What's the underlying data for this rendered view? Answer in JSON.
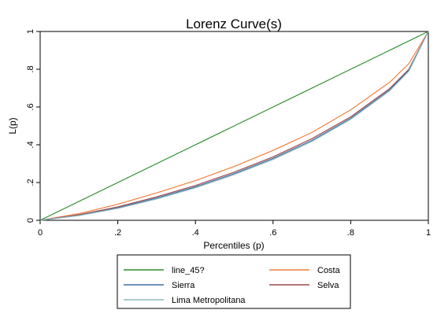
{
  "chart_data": {
    "type": "line",
    "title": "Lorenz Curve(s)",
    "xlabel": "Percentiles (p)",
    "ylabel": "L(p)",
    "xlim": [
      0,
      1
    ],
    "ylim": [
      0,
      1
    ],
    "x_ticks": [
      0,
      0.2,
      0.4,
      0.6,
      0.8,
      1
    ],
    "y_ticks": [
      0,
      0.2,
      0.4,
      0.6,
      0.8,
      1
    ],
    "x_tick_labels": [
      "0",
      ".2",
      ".4",
      ".6",
      ".8",
      "1"
    ],
    "y_tick_labels": [
      "0",
      ".2",
      ".4",
      ".6",
      ".8",
      "1"
    ],
    "grid": false,
    "legend_position": "bottom",
    "x": [
      0,
      0.1,
      0.2,
      0.3,
      0.4,
      0.5,
      0.6,
      0.7,
      0.8,
      0.9,
      0.95,
      1
    ],
    "series": [
      {
        "name": "line_45?",
        "color": "#2e8b2e",
        "values": [
          0,
          0.1,
          0.2,
          0.3,
          0.4,
          0.5,
          0.6,
          0.7,
          0.8,
          0.9,
          0.95,
          1
        ]
      },
      {
        "name": "Costa",
        "color": "#f07f3c",
        "values": [
          0,
          0.035,
          0.085,
          0.145,
          0.21,
          0.285,
          0.37,
          0.465,
          0.585,
          0.73,
          0.83,
          1
        ]
      },
      {
        "name": "Sierra",
        "color": "#3f6f9f",
        "values": [
          0,
          0.026,
          0.066,
          0.118,
          0.177,
          0.247,
          0.328,
          0.423,
          0.54,
          0.69,
          0.795,
          1
        ]
      },
      {
        "name": "Selva",
        "color": "#a0484e",
        "values": [
          0,
          0.029,
          0.071,
          0.124,
          0.184,
          0.255,
          0.336,
          0.432,
          0.548,
          0.697,
          0.8,
          1
        ]
      },
      {
        "name": "Lima Metropolitana",
        "color": "#8fb8c0",
        "values": [
          0,
          0.025,
          0.063,
          0.113,
          0.172,
          0.242,
          0.322,
          0.417,
          0.535,
          0.685,
          0.79,
          1
        ]
      }
    ]
  }
}
